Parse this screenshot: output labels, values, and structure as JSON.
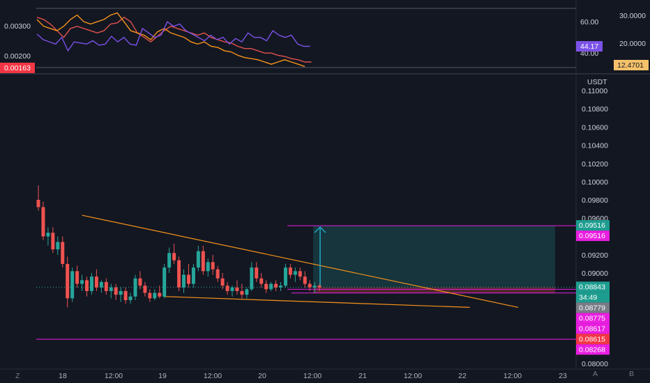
{
  "indicator_pane": {
    "left_axis_labels": [
      {
        "text": "0.00300",
        "value": 0.003
      },
      {
        "text": "0.00200",
        "value": 0.002
      }
    ],
    "left_current": {
      "text": "0.00163",
      "color": "#f23645"
    },
    "mid_axis_labels": [
      {
        "text": "60.00",
        "value": 60
      },
      {
        "text": "40.00",
        "value": 40
      }
    ],
    "mid_current": {
      "text": "44.17",
      "color": "#7b52e8",
      "value": 44.17
    },
    "right_axis_labels": [
      {
        "text": "30.0000",
        "value": 30
      },
      {
        "text": "20.0000",
        "value": 20
      }
    ],
    "right_current": {
      "text": "12.4701",
      "color": "#f5c26b",
      "value": 12.4701
    }
  },
  "main_pane": {
    "currency": "USDT",
    "price_labels": [
      "0.11000",
      "0.10800",
      "0.10600",
      "0.10400",
      "0.10200",
      "0.10000",
      "0.09800",
      "0.09600",
      "0.09200",
      "0.09000",
      "0.08000"
    ],
    "price_values": [
      0.11,
      0.108,
      0.106,
      0.104,
      0.102,
      0.1,
      0.098,
      0.096,
      0.092,
      0.09,
      0.08
    ],
    "badges": [
      {
        "text": "0.09516",
        "value": 0.09516,
        "bg": "#1d9d8f",
        "fg": "#ffffff"
      },
      {
        "text": "0.09516",
        "value": 0.09516,
        "bg": "#e91ee0",
        "fg": "#ffffff",
        "offset": 1
      },
      {
        "text": "0.08843",
        "value": 0.08843,
        "bg": "#1d9d8f",
        "fg": "#ffffff"
      },
      {
        "text": "34:49",
        "value": 0.08843,
        "bg": "#1d9d8f",
        "fg": "#ffffff",
        "offset": 1
      },
      {
        "text": "0.08779",
        "value": 0.08779,
        "bg": "#787b86",
        "fg": "#ffffff"
      },
      {
        "text": "0.08775",
        "value": 0.08775,
        "bg": "#e91ee0",
        "fg": "#ffffff",
        "offset": 1
      },
      {
        "text": "0.08617",
        "value": 0.08617,
        "bg": "#e91ee0",
        "fg": "#ffffff",
        "offset": 2
      },
      {
        "text": "0.08615",
        "value": 0.08615,
        "bg": "#f23645",
        "fg": "#ffffff",
        "offset": 3
      },
      {
        "text": "0.08268",
        "value": 0.08268,
        "bg": "#e91ee0",
        "fg": "#ffffff",
        "offset": 4
      }
    ]
  },
  "time_axis": [
    "18",
    "12:00",
    "19",
    "12:00",
    "20",
    "12:00",
    "21",
    "12:00",
    "22",
    "12:00",
    "23"
  ],
  "bottom_bar": {
    "left_button": "Z",
    "auto_button": "A",
    "log_button": "B"
  },
  "colors": {
    "up": "#26a69a",
    "down": "#ef5350",
    "trend": "#f7931a",
    "magenta": "#e91ee0",
    "target": "#1fa9c9"
  },
  "chart_data": {
    "type": "candlestick",
    "interval_hours": 2,
    "ohlc": [
      [
        0.098,
        0.0996,
        0.0968,
        0.0972
      ],
      [
        0.0972,
        0.0978,
        0.0936,
        0.094
      ],
      [
        0.094,
        0.095,
        0.093,
        0.0944
      ],
      [
        0.0944,
        0.095,
        0.0922,
        0.0926
      ],
      [
        0.0926,
        0.094,
        0.092,
        0.0934
      ],
      [
        0.0934,
        0.094,
        0.0906,
        0.091
      ],
      [
        0.091,
        0.0918,
        0.0862,
        0.0872
      ],
      [
        0.0872,
        0.0906,
        0.0868,
        0.0902
      ],
      [
        0.0902,
        0.0908,
        0.0884,
        0.0888
      ],
      [
        0.0888,
        0.0898,
        0.088,
        0.0892
      ],
      [
        0.0892,
        0.0896,
        0.0874,
        0.088
      ],
      [
        0.088,
        0.09,
        0.0876,
        0.0896
      ],
      [
        0.0896,
        0.0904,
        0.088,
        0.0884
      ],
      [
        0.0884,
        0.0892,
        0.0878,
        0.089
      ],
      [
        0.089,
        0.0894,
        0.0876,
        0.088
      ],
      [
        0.088,
        0.0888,
        0.0872,
        0.0884
      ],
      [
        0.0884,
        0.0888,
        0.087,
        0.0876
      ],
      [
        0.0876,
        0.0884,
        0.0868,
        0.088
      ],
      [
        0.088,
        0.0884,
        0.0866,
        0.087
      ],
      [
        0.087,
        0.0878,
        0.0866,
        0.0874
      ],
      [
        0.0874,
        0.0898,
        0.087,
        0.0894
      ],
      [
        0.0894,
        0.0902,
        0.0882,
        0.0886
      ],
      [
        0.0886,
        0.089,
        0.0874,
        0.0878
      ],
      [
        0.0878,
        0.0882,
        0.0868,
        0.0872
      ],
      [
        0.0872,
        0.0882,
        0.087,
        0.0878
      ],
      [
        0.0878,
        0.0886,
        0.0872,
        0.0874
      ],
      [
        0.0874,
        0.091,
        0.0872,
        0.0906
      ],
      [
        0.0906,
        0.0928,
        0.09,
        0.0922
      ],
      [
        0.0922,
        0.0932,
        0.091,
        0.0914
      ],
      [
        0.0914,
        0.0918,
        0.088,
        0.0884
      ],
      [
        0.0884,
        0.0904,
        0.0878,
        0.0898
      ],
      [
        0.0898,
        0.091,
        0.0884,
        0.0888
      ],
      [
        0.0888,
        0.091,
        0.0884,
        0.0906
      ],
      [
        0.0906,
        0.093,
        0.0902,
        0.0924
      ],
      [
        0.0924,
        0.093,
        0.0898,
        0.0902
      ],
      [
        0.0902,
        0.0916,
        0.0896,
        0.0912
      ],
      [
        0.0912,
        0.092,
        0.0898,
        0.0904
      ],
      [
        0.0904,
        0.0908,
        0.089,
        0.0894
      ],
      [
        0.0894,
        0.09,
        0.0882,
        0.0886
      ],
      [
        0.0886,
        0.089,
        0.0876,
        0.088
      ],
      [
        0.088,
        0.0886,
        0.0874,
        0.0884
      ],
      [
        0.0884,
        0.0892,
        0.0876,
        0.088
      ],
      [
        0.088,
        0.0888,
        0.0872,
        0.0876
      ],
      [
        0.0876,
        0.0884,
        0.0872,
        0.0882
      ],
      [
        0.0882,
        0.0912,
        0.088,
        0.0906
      ],
      [
        0.0906,
        0.0912,
        0.089,
        0.0894
      ],
      [
        0.0894,
        0.09,
        0.0884,
        0.0888
      ],
      [
        0.0888,
        0.0892,
        0.0878,
        0.0882
      ],
      [
        0.0882,
        0.089,
        0.088,
        0.0888
      ],
      [
        0.0888,
        0.0892,
        0.088,
        0.0884
      ],
      [
        0.0884,
        0.089,
        0.088,
        0.0886
      ],
      [
        0.0886,
        0.091,
        0.0884,
        0.0906
      ],
      [
        0.0906,
        0.091,
        0.0894,
        0.0898
      ],
      [
        0.0898,
        0.0906,
        0.089,
        0.0902
      ],
      [
        0.0902,
        0.0906,
        0.0892,
        0.0896
      ],
      [
        0.0896,
        0.0902,
        0.0884,
        0.0888
      ],
      [
        0.0888,
        0.0892,
        0.088,
        0.0884
      ],
      [
        0.0884,
        0.089,
        0.0878,
        0.0886
      ],
      [
        0.0886,
        0.0888,
        0.088,
        0.0884
      ]
    ],
    "trendlines": [
      {
        "name": "upper",
        "from": [
          9,
          0.0963
        ],
        "to": [
          99,
          0.0862
        ]
      },
      {
        "name": "lower",
        "from": [
          26,
          0.0874
        ],
        "to": [
          89,
          0.0862
        ]
      }
    ],
    "horizontal_lines": [
      0.09516,
      0.08779,
      0.08268
    ],
    "position_box": {
      "entry": 0.08843,
      "target": 0.09516,
      "stop": 0.08779
    },
    "indicator_series": {
      "purple": [
        55,
        50,
        48,
        46,
        52,
        40,
        48,
        47,
        46,
        49,
        45,
        46,
        53,
        48,
        52,
        46,
        45,
        60,
        56,
        52,
        54,
        66,
        62,
        64,
        58,
        55,
        52,
        49,
        54,
        50,
        52,
        46,
        51,
        48,
        56,
        52,
        52,
        49,
        58,
        54,
        52,
        54,
        46,
        44,
        44
      ],
      "red": [
        70,
        68,
        64,
        58,
        52,
        60,
        62,
        60,
        58,
        56,
        58,
        64,
        65,
        70,
        66,
        56,
        52,
        48,
        53,
        58,
        62,
        60,
        58,
        56,
        54,
        56,
        52,
        50,
        48,
        47,
        44,
        42,
        42,
        40,
        38,
        38,
        36,
        35,
        33,
        32,
        30,
        30
      ],
      "orange": [
        68,
        62,
        60,
        58,
        62,
        68,
        72,
        66,
        64,
        66,
        68,
        72,
        74,
        66,
        58,
        56,
        54,
        50,
        57,
        60,
        56,
        54,
        52,
        48,
        46,
        48,
        44,
        43,
        40,
        39,
        36,
        34,
        33,
        32,
        30,
        28,
        30,
        32,
        30,
        28,
        26
      ]
    }
  }
}
